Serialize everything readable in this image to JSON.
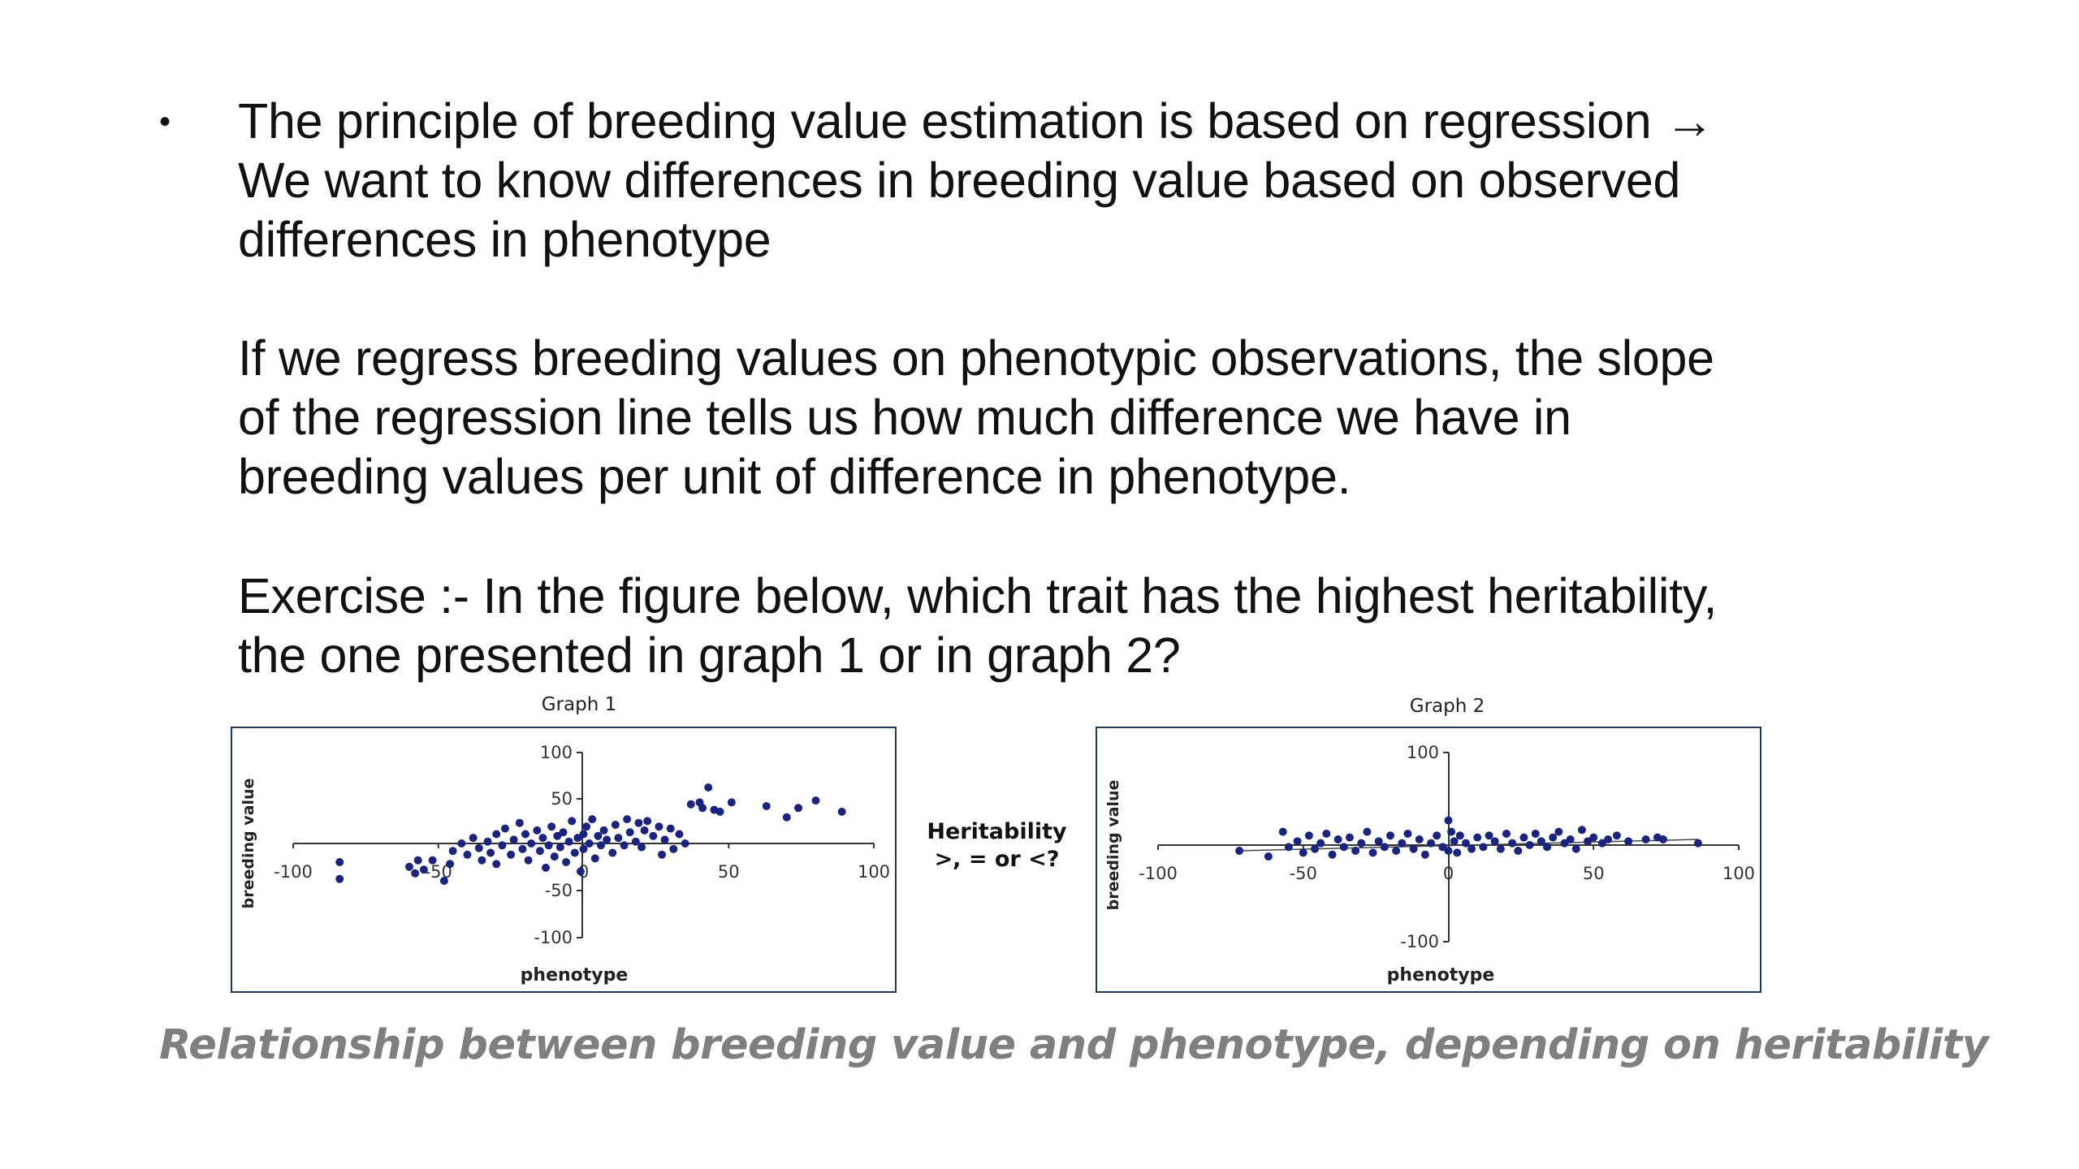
{
  "paragraph1": {
    "bullet": "•",
    "lines": [
      "The principle of breeding value estimation is based on regression →",
      "We want to know differences in breeding value based on observed",
      "differences in phenotype"
    ]
  },
  "paragraph2": {
    "lines": [
      "If we regress breeding values on phenotypic observations, the slope",
      "of the regression line tells us how much difference we have in",
      "breeding values per unit of difference in phenotype."
    ]
  },
  "paragraph3": {
    "lines": [
      "Exercise :- In the figure below, which trait has the highest heritability,",
      "the one presented in graph 1 or in graph 2?"
    ]
  },
  "middle_label": {
    "lines": [
      "Heritability",
      ">, = or <?"
    ]
  },
  "caption": "Relationship between breeding value and phenotype, depending on heritability",
  "colors": {
    "points": "#1a237e",
    "frame": "#1f3a60",
    "axis": "#333333",
    "caption": "#7f7f7f"
  },
  "chart_data": [
    {
      "type": "scatter",
      "title": "Graph 1",
      "xlabel": "phenotype",
      "ylabel": "breeding value",
      "xlim": [
        -100,
        100
      ],
      "ylim": [
        -100,
        100
      ],
      "x_ticks": [
        -100,
        -50,
        50,
        100
      ],
      "y_ticks": [
        100,
        50,
        -50,
        -100
      ],
      "points": [
        [
          -84,
          -20
        ],
        [
          -84,
          -38
        ],
        [
          -60,
          -25
        ],
        [
          -58,
          -32
        ],
        [
          -57,
          -18
        ],
        [
          -55,
          -28
        ],
        [
          -52,
          -18
        ],
        [
          -48,
          -40
        ],
        [
          -46,
          -22
        ],
        [
          -45,
          -8
        ],
        [
          -42,
          0
        ],
        [
          -40,
          -12
        ],
        [
          -38,
          6
        ],
        [
          -36,
          -5
        ],
        [
          -35,
          -18
        ],
        [
          -33,
          2
        ],
        [
          -32,
          -10
        ],
        [
          -30,
          10
        ],
        [
          -30,
          -22
        ],
        [
          -28,
          -2
        ],
        [
          -27,
          16
        ],
        [
          -25,
          -12
        ],
        [
          -24,
          4
        ],
        [
          -22,
          22
        ],
        [
          -21,
          -6
        ],
        [
          -20,
          10
        ],
        [
          -19,
          -18
        ],
        [
          -18,
          0
        ],
        [
          -16,
          14
        ],
        [
          -15,
          -8
        ],
        [
          -14,
          6
        ],
        [
          -13,
          -26
        ],
        [
          -12,
          -2
        ],
        [
          -11,
          18
        ],
        [
          -10,
          -14
        ],
        [
          -9,
          8
        ],
        [
          -8,
          -4
        ],
        [
          -7,
          12
        ],
        [
          -6,
          -20
        ],
        [
          -5,
          2
        ],
        [
          -4,
          24
        ],
        [
          -3,
          -10
        ],
        [
          -2,
          6
        ],
        [
          -1,
          -30
        ],
        [
          0,
          10
        ],
        [
          0,
          -6
        ],
        [
          1,
          18
        ],
        [
          2,
          0
        ],
        [
          3,
          26
        ],
        [
          4,
          -16
        ],
        [
          5,
          8
        ],
        [
          6,
          -2
        ],
        [
          7,
          14
        ],
        [
          8,
          4
        ],
        [
          10,
          -10
        ],
        [
          11,
          20
        ],
        [
          12,
          6
        ],
        [
          14,
          -2
        ],
        [
          15,
          26
        ],
        [
          16,
          12
        ],
        [
          18,
          2
        ],
        [
          19,
          22
        ],
        [
          20,
          -4
        ],
        [
          21,
          14
        ],
        [
          22,
          24
        ],
        [
          24,
          8
        ],
        [
          26,
          18
        ],
        [
          27,
          -12
        ],
        [
          28,
          4
        ],
        [
          30,
          16
        ],
        [
          31,
          -6
        ],
        [
          33,
          10
        ],
        [
          35,
          0
        ],
        [
          37,
          42
        ],
        [
          40,
          44
        ],
        [
          41,
          38
        ],
        [
          43,
          60
        ],
        [
          45,
          36
        ],
        [
          47,
          34
        ],
        [
          51,
          44
        ],
        [
          63,
          40
        ],
        [
          70,
          28
        ],
        [
          74,
          38
        ],
        [
          80,
          46
        ],
        [
          89,
          34
        ]
      ]
    },
    {
      "type": "scatter",
      "title": "Graph 2",
      "xlabel": "phenotype",
      "ylabel": "breeding value",
      "xlim": [
        -100,
        100
      ],
      "ylim": [
        -100,
        100
      ],
      "x_ticks": [
        -100,
        -50,
        50,
        100
      ],
      "y_ticks": [
        100,
        -100
      ],
      "points": [
        [
          -72,
          -6
        ],
        [
          -62,
          -12
        ],
        [
          -57,
          14
        ],
        [
          -55,
          -2
        ],
        [
          -52,
          4
        ],
        [
          -50,
          -8
        ],
        [
          -48,
          10
        ],
        [
          -46,
          -4
        ],
        [
          -44,
          2
        ],
        [
          -42,
          12
        ],
        [
          -40,
          -10
        ],
        [
          -38,
          6
        ],
        [
          -36,
          -2
        ],
        [
          -34,
          8
        ],
        [
          -32,
          -6
        ],
        [
          -30,
          2
        ],
        [
          -28,
          14
        ],
        [
          -26,
          -8
        ],
        [
          -24,
          4
        ],
        [
          -22,
          -2
        ],
        [
          -20,
          10
        ],
        [
          -18,
          -6
        ],
        [
          -16,
          2
        ],
        [
          -14,
          12
        ],
        [
          -12,
          -4
        ],
        [
          -10,
          6
        ],
        [
          -8,
          -10
        ],
        [
          -6,
          2
        ],
        [
          -4,
          10
        ],
        [
          -2,
          -2
        ],
        [
          0,
          26
        ],
        [
          0,
          -6
        ],
        [
          1,
          14
        ],
        [
          2,
          4
        ],
        [
          3,
          -8
        ],
        [
          4,
          10
        ],
        [
          6,
          2
        ],
        [
          8,
          -4
        ],
        [
          10,
          8
        ],
        [
          12,
          -2
        ],
        [
          14,
          10
        ],
        [
          16,
          4
        ],
        [
          18,
          -4
        ],
        [
          20,
          12
        ],
        [
          22,
          2
        ],
        [
          24,
          -6
        ],
        [
          26,
          8
        ],
        [
          28,
          0
        ],
        [
          30,
          12
        ],
        [
          32,
          4
        ],
        [
          34,
          -2
        ],
        [
          36,
          8
        ],
        [
          38,
          14
        ],
        [
          40,
          2
        ],
        [
          42,
          6
        ],
        [
          44,
          -4
        ],
        [
          46,
          16
        ],
        [
          48,
          4
        ],
        [
          50,
          8
        ],
        [
          53,
          2
        ],
        [
          55,
          6
        ],
        [
          58,
          10
        ],
        [
          62,
          4
        ],
        [
          68,
          6
        ],
        [
          72,
          8
        ],
        [
          74,
          6
        ],
        [
          86,
          2
        ]
      ]
    }
  ]
}
